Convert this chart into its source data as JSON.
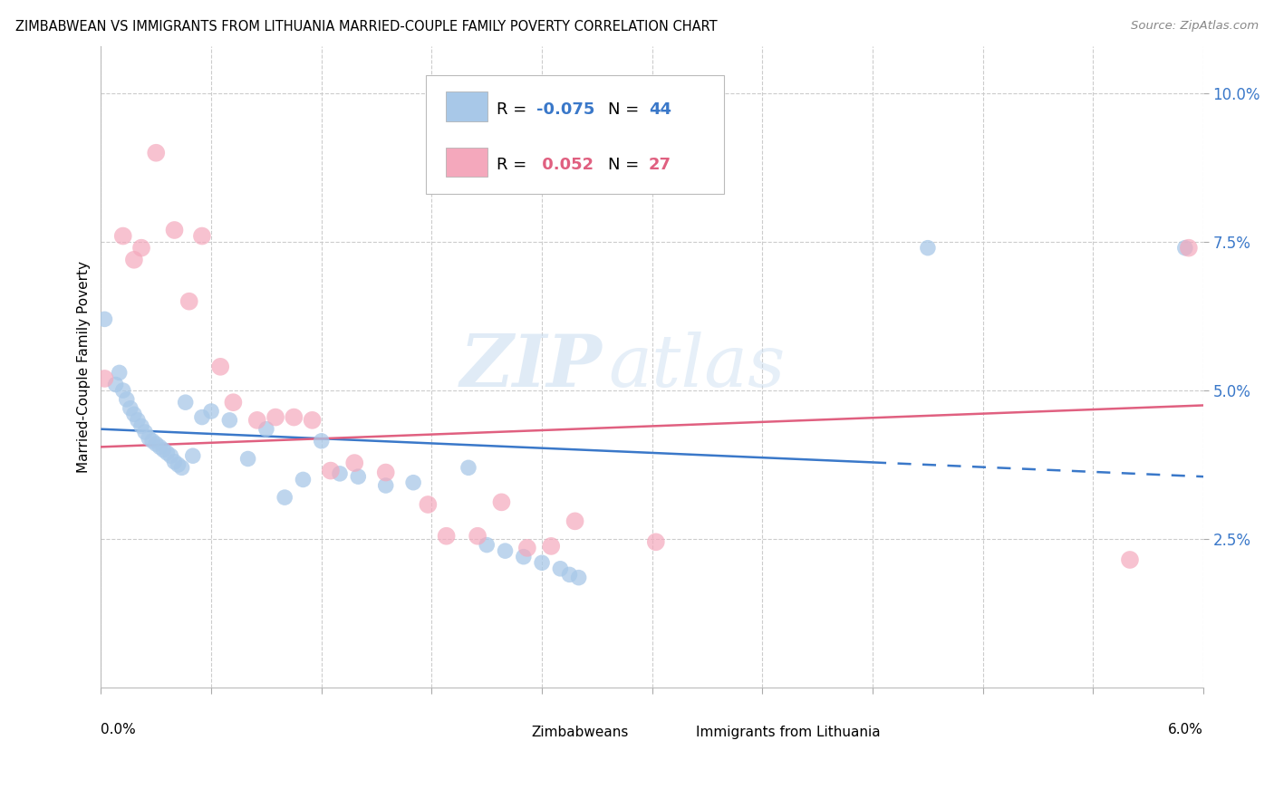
{
  "title": "ZIMBABWEAN VS IMMIGRANTS FROM LITHUANIA MARRIED-COUPLE FAMILY POVERTY CORRELATION CHART",
  "source": "Source: ZipAtlas.com",
  "ylabel": "Married-Couple Family Poverty",
  "xlim": [
    0.0,
    6.0
  ],
  "ylim": [
    0.0,
    10.8
  ],
  "yticks": [
    2.5,
    5.0,
    7.5,
    10.0
  ],
  "ytick_labels": [
    "2.5%",
    "5.0%",
    "7.5%",
    "10.0%"
  ],
  "xticks": [
    0.0,
    0.6,
    1.2,
    1.8,
    2.4,
    3.0,
    3.6,
    4.2,
    4.8,
    5.4,
    6.0
  ],
  "color_blue": "#a8c8e8",
  "color_pink": "#f4a8bc",
  "color_blue_line": "#3a78c9",
  "color_pink_line": "#e06080",
  "color_blue_text": "#3a78c9",
  "color_pink_text": "#e06080",
  "watermark_zip": "ZIP",
  "watermark_atlas": "atlas",
  "blue_scatter_x": [
    0.02,
    0.08,
    0.1,
    0.12,
    0.14,
    0.16,
    0.18,
    0.2,
    0.22,
    0.24,
    0.26,
    0.28,
    0.3,
    0.32,
    0.34,
    0.36,
    0.38,
    0.4,
    0.42,
    0.44,
    0.46,
    0.5,
    0.55,
    0.6,
    0.7,
    0.8,
    0.9,
    1.0,
    1.1,
    1.2,
    1.3,
    1.4,
    1.55,
    1.7,
    2.0,
    2.1,
    2.2,
    2.3,
    2.4,
    2.5,
    2.55,
    2.6,
    4.5,
    5.9
  ],
  "blue_scatter_y": [
    6.2,
    5.1,
    5.3,
    5.0,
    4.85,
    4.7,
    4.6,
    4.5,
    4.4,
    4.3,
    4.2,
    4.15,
    4.1,
    4.05,
    4.0,
    3.95,
    3.9,
    3.8,
    3.75,
    3.7,
    4.8,
    3.9,
    4.55,
    4.65,
    4.5,
    3.85,
    4.35,
    3.2,
    3.5,
    4.15,
    3.6,
    3.55,
    3.4,
    3.45,
    3.7,
    2.4,
    2.3,
    2.2,
    2.1,
    2.0,
    1.9,
    1.85,
    7.4,
    7.4
  ],
  "pink_scatter_x": [
    0.02,
    0.12,
    0.18,
    0.22,
    0.3,
    0.4,
    0.48,
    0.55,
    0.65,
    0.72,
    0.85,
    0.95,
    1.05,
    1.15,
    1.25,
    1.38,
    1.55,
    1.78,
    1.88,
    2.05,
    2.18,
    2.32,
    2.45,
    2.58,
    3.02,
    5.6,
    5.92
  ],
  "pink_scatter_y": [
    5.2,
    7.6,
    7.2,
    7.4,
    9.0,
    7.7,
    6.5,
    7.6,
    5.4,
    4.8,
    4.5,
    4.55,
    4.55,
    4.5,
    3.65,
    3.78,
    3.62,
    3.08,
    2.55,
    2.55,
    3.12,
    2.35,
    2.38,
    2.8,
    2.45,
    2.15,
    7.4
  ],
  "blue_trend_start_y": 4.35,
  "blue_trend_end_y": 3.55,
  "blue_trend_solid_end_x": 4.2,
  "pink_trend_start_y": 4.05,
  "pink_trend_end_y": 4.75
}
